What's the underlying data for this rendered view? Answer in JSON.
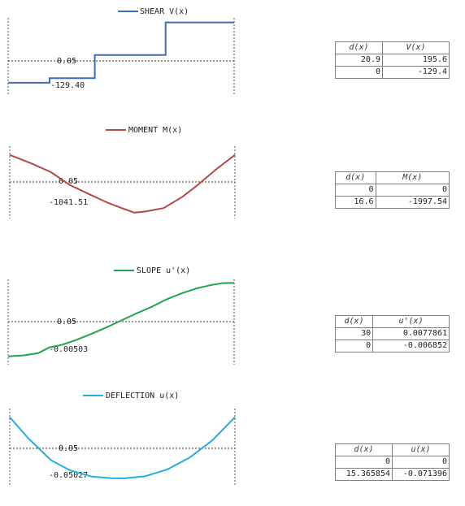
{
  "charts": [
    {
      "id": "shear",
      "legend": "SHEAR V(x)",
      "color": "#3f6db3",
      "value_label_top": "0.05",
      "value_label_low": "-129.40",
      "table_headers": [
        "d(x)",
        "V(x)"
      ],
      "table_rows": [
        [
          "20.9",
          "195.6"
        ],
        [
          "0",
          "-129.4"
        ]
      ]
    },
    {
      "id": "moment",
      "legend": "MOMENT M(x)",
      "color": "#b04a48",
      "value_label_top": "0.05",
      "value_label_low": "-1041.51",
      "table_headers": [
        "d(x)",
        "M(x)"
      ],
      "table_rows": [
        [
          "0",
          "0"
        ],
        [
          "16.6",
          "-1997.54"
        ]
      ]
    },
    {
      "id": "slope",
      "legend": "SLOPE u'(x)",
      "color": "#1fa54a",
      "value_label_top": "0.05",
      "value_label_low": "-0.00503",
      "table_headers": [
        "d(x)",
        "u'(x)"
      ],
      "table_rows": [
        [
          "30",
          "0.0077861"
        ],
        [
          "0",
          "-0.006852"
        ]
      ]
    },
    {
      "id": "deflection",
      "legend": "DEFLECTION u(x)",
      "color": "#22aee0",
      "value_label_top": "0.05",
      "value_label_low": "-0.05027",
      "table_headers": [
        "d(x)",
        "u(x)"
      ],
      "table_rows": [
        [
          "0",
          "0"
        ],
        [
          "15.365854",
          "-0.071396"
        ]
      ]
    }
  ],
  "chart_data": [
    {
      "type": "line",
      "title": "SHEAR V(x)",
      "series_name": "SHEAR V(x)",
      "xlim": [
        0,
        30
      ],
      "ylim": [
        -200,
        220
      ],
      "x": [
        0,
        3.2,
        3.2,
        3.9,
        3.9,
        5.5,
        5.5,
        6.7,
        6.7,
        11.5,
        11.5,
        14.4,
        14.4,
        20.9,
        20.9,
        30
      ],
      "y": [
        -129.4,
        -129.4,
        -129.4,
        -129.4,
        -129.4,
        -129.4,
        -105,
        -105,
        -105,
        -105,
        20,
        20,
        20,
        20,
        195.6,
        195.6
      ]
    },
    {
      "type": "line",
      "title": "MOMENT M(x)",
      "series_name": "MOMENT M(x)",
      "xlim": [
        0,
        30
      ],
      "ylim": [
        -2200,
        300
      ],
      "x": [
        0,
        3,
        5.5,
        8,
        10.5,
        13,
        15,
        16.6,
        18,
        20.5,
        23,
        25,
        27.5,
        30
      ],
      "y": [
        0,
        -310,
        -600,
        -1041.51,
        -1350,
        -1650,
        -1850,
        -1997.54,
        -1960,
        -1840,
        -1450,
        -1050,
        -500,
        0
      ]
    },
    {
      "type": "line",
      "title": "SLOPE u'(x)",
      "series_name": "SLOPE u'(x)",
      "xlim": [
        0,
        30
      ],
      "ylim": [
        -0.0085,
        0.0085
      ],
      "x": [
        0,
        2,
        4,
        5.5,
        7,
        9,
        11,
        13,
        15,
        17,
        19,
        21,
        23,
        25,
        27,
        28.5,
        30
      ],
      "y": [
        -0.006852,
        -0.00665,
        -0.0062,
        -0.00503,
        -0.0046,
        -0.0036,
        -0.0024,
        -0.0011,
        0.0003,
        0.0017,
        0.003,
        0.0045,
        0.0057,
        0.0067,
        0.0074,
        0.00775,
        0.0077861
      ]
    },
    {
      "type": "line",
      "title": "DEFLECTION u(x)",
      "series_name": "DEFLECTION u(x)",
      "xlim": [
        0,
        30
      ],
      "ylim": [
        -0.08,
        0.01
      ],
      "x": [
        0,
        2.5,
        5.5,
        8,
        11,
        13.5,
        15.365854,
        18,
        21,
        24,
        27,
        30
      ],
      "y": [
        0,
        -0.025,
        -0.05027,
        -0.062,
        -0.0695,
        -0.0712,
        -0.071396,
        -0.069,
        -0.061,
        -0.047,
        -0.027,
        0
      ]
    }
  ]
}
